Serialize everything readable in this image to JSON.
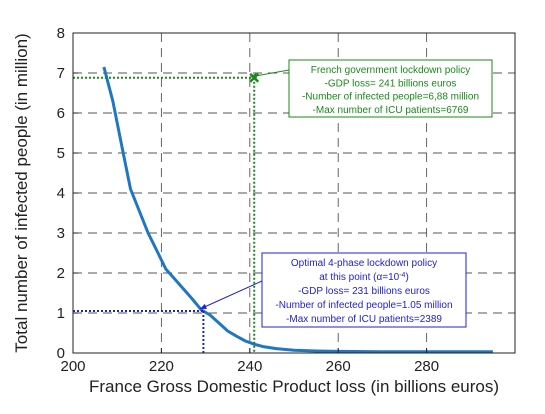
{
  "chart_data": {
    "type": "line",
    "xlabel": "France Gross Domestic Product loss (in billions euros)",
    "ylabel": "Total number of infected people (in million)",
    "xlim": [
      200,
      300
    ],
    "ylim": [
      0,
      8
    ],
    "x_ticks": [
      "200",
      "220",
      "240",
      "260",
      "280"
    ],
    "y_ticks": [
      "0",
      "1",
      "2",
      "3",
      "4",
      "5",
      "6",
      "7",
      "8"
    ],
    "grid": true,
    "series": [
      {
        "color": "#1f77c4",
        "points": [
          [
            207,
            7.15
          ],
          [
            209,
            6.3
          ],
          [
            211,
            5.2
          ],
          [
            213,
            4.1
          ],
          [
            215,
            3.55
          ],
          [
            217,
            3.0
          ],
          [
            219,
            2.55
          ],
          [
            221,
            2.1
          ],
          [
            223,
            1.85
          ],
          [
            225,
            1.6
          ],
          [
            227,
            1.35
          ],
          [
            229,
            1.08
          ],
          [
            231,
            0.95
          ],
          [
            233,
            0.75
          ],
          [
            235,
            0.55
          ],
          [
            237,
            0.42
          ],
          [
            239,
            0.3
          ],
          [
            241,
            0.22
          ],
          [
            243,
            0.16
          ],
          [
            246,
            0.11
          ],
          [
            250,
            0.07
          ],
          [
            255,
            0.05
          ],
          [
            260,
            0.04
          ],
          [
            270,
            0.03
          ],
          [
            280,
            0.03
          ],
          [
            295,
            0.03
          ]
        ]
      }
    ],
    "annotations": [
      {
        "color": "#1a8a1a",
        "point": [
          241,
          6.88
        ],
        "marker": "x",
        "lines": [
          "French government lockdown policy",
          "-GDP loss= 241 billions euros",
          "-Number of infected people=6,88 million",
          "-Max number of ICU patients=6769"
        ]
      },
      {
        "color": "#2222cc",
        "point": [
          229.5,
          1.05
        ],
        "marker": "",
        "lines": [
          "Optimal 4-phase lockdown policy",
          "at this point (α=10",
          "-GDP loss= 231 billions euros",
          "-Number of infected people=1.05 million",
          "-Max number of ICU patients=2389"
        ],
        "superscript": "-4",
        "superscript_close": ")"
      }
    ]
  }
}
